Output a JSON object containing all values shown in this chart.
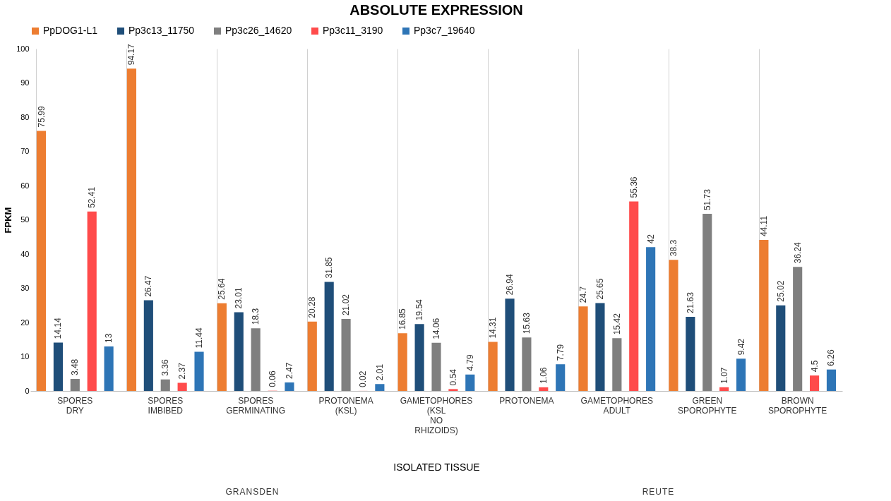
{
  "chart_data": {
    "type": "bar",
    "title": "ABSOLUTE EXPRESSION",
    "xlabel": "ISOLATED TISSUE",
    "ylabel": "FPKM",
    "categories": [
      "SPORES DRY",
      "SPORES IMBIBED",
      "SPORES GERMINATING",
      "PROTONEMA (KSL)",
      "GAMETOPHORES (KSL NO RHIZOIDS)",
      "PROTONEMA",
      "GAMETOPHORES ADULT",
      "GREEN SPOROPHYTE",
      "BROWN SPOROPHYTE"
    ],
    "series": [
      {
        "name": "PpDOG1-L1",
        "color": "#ed7d31",
        "values": [
          75.99,
          94.17,
          25.64,
          20.28,
          16.85,
          14.31,
          24.7,
          38.3,
          44.11
        ]
      },
      {
        "name": "Pp3c13_11750",
        "color": "#1f4e79",
        "values": [
          14.14,
          26.47,
          23.01,
          31.85,
          19.54,
          26.94,
          25.65,
          21.63,
          25.02
        ]
      },
      {
        "name": "Pp3c26_14620",
        "color": "#7f7f7f",
        "values": [
          3.48,
          3.36,
          18.3,
          21.02,
          14.06,
          15.63,
          15.42,
          51.73,
          36.24
        ]
      },
      {
        "name": "Pp3c11_3190",
        "color": "#ff4b4b",
        "values": [
          52.41,
          2.37,
          0.06,
          0.02,
          0.54,
          1.06,
          55.36,
          1.07,
          4.5
        ]
      },
      {
        "name": "Pp3c7_19640",
        "color": "#2e75b6",
        "values": [
          13,
          11.44,
          2.47,
          2.01,
          4.79,
          7.79,
          42,
          9.42,
          6.26
        ]
      }
    ],
    "ylim": [
      0,
      100
    ],
    "yticks": [
      0,
      10,
      20,
      30,
      40,
      50,
      60,
      70,
      80,
      90,
      100
    ],
    "grid": "x",
    "legend": "top",
    "data_labels": true,
    "annotations": [
      "GRANSDEN",
      "REUTE"
    ]
  }
}
